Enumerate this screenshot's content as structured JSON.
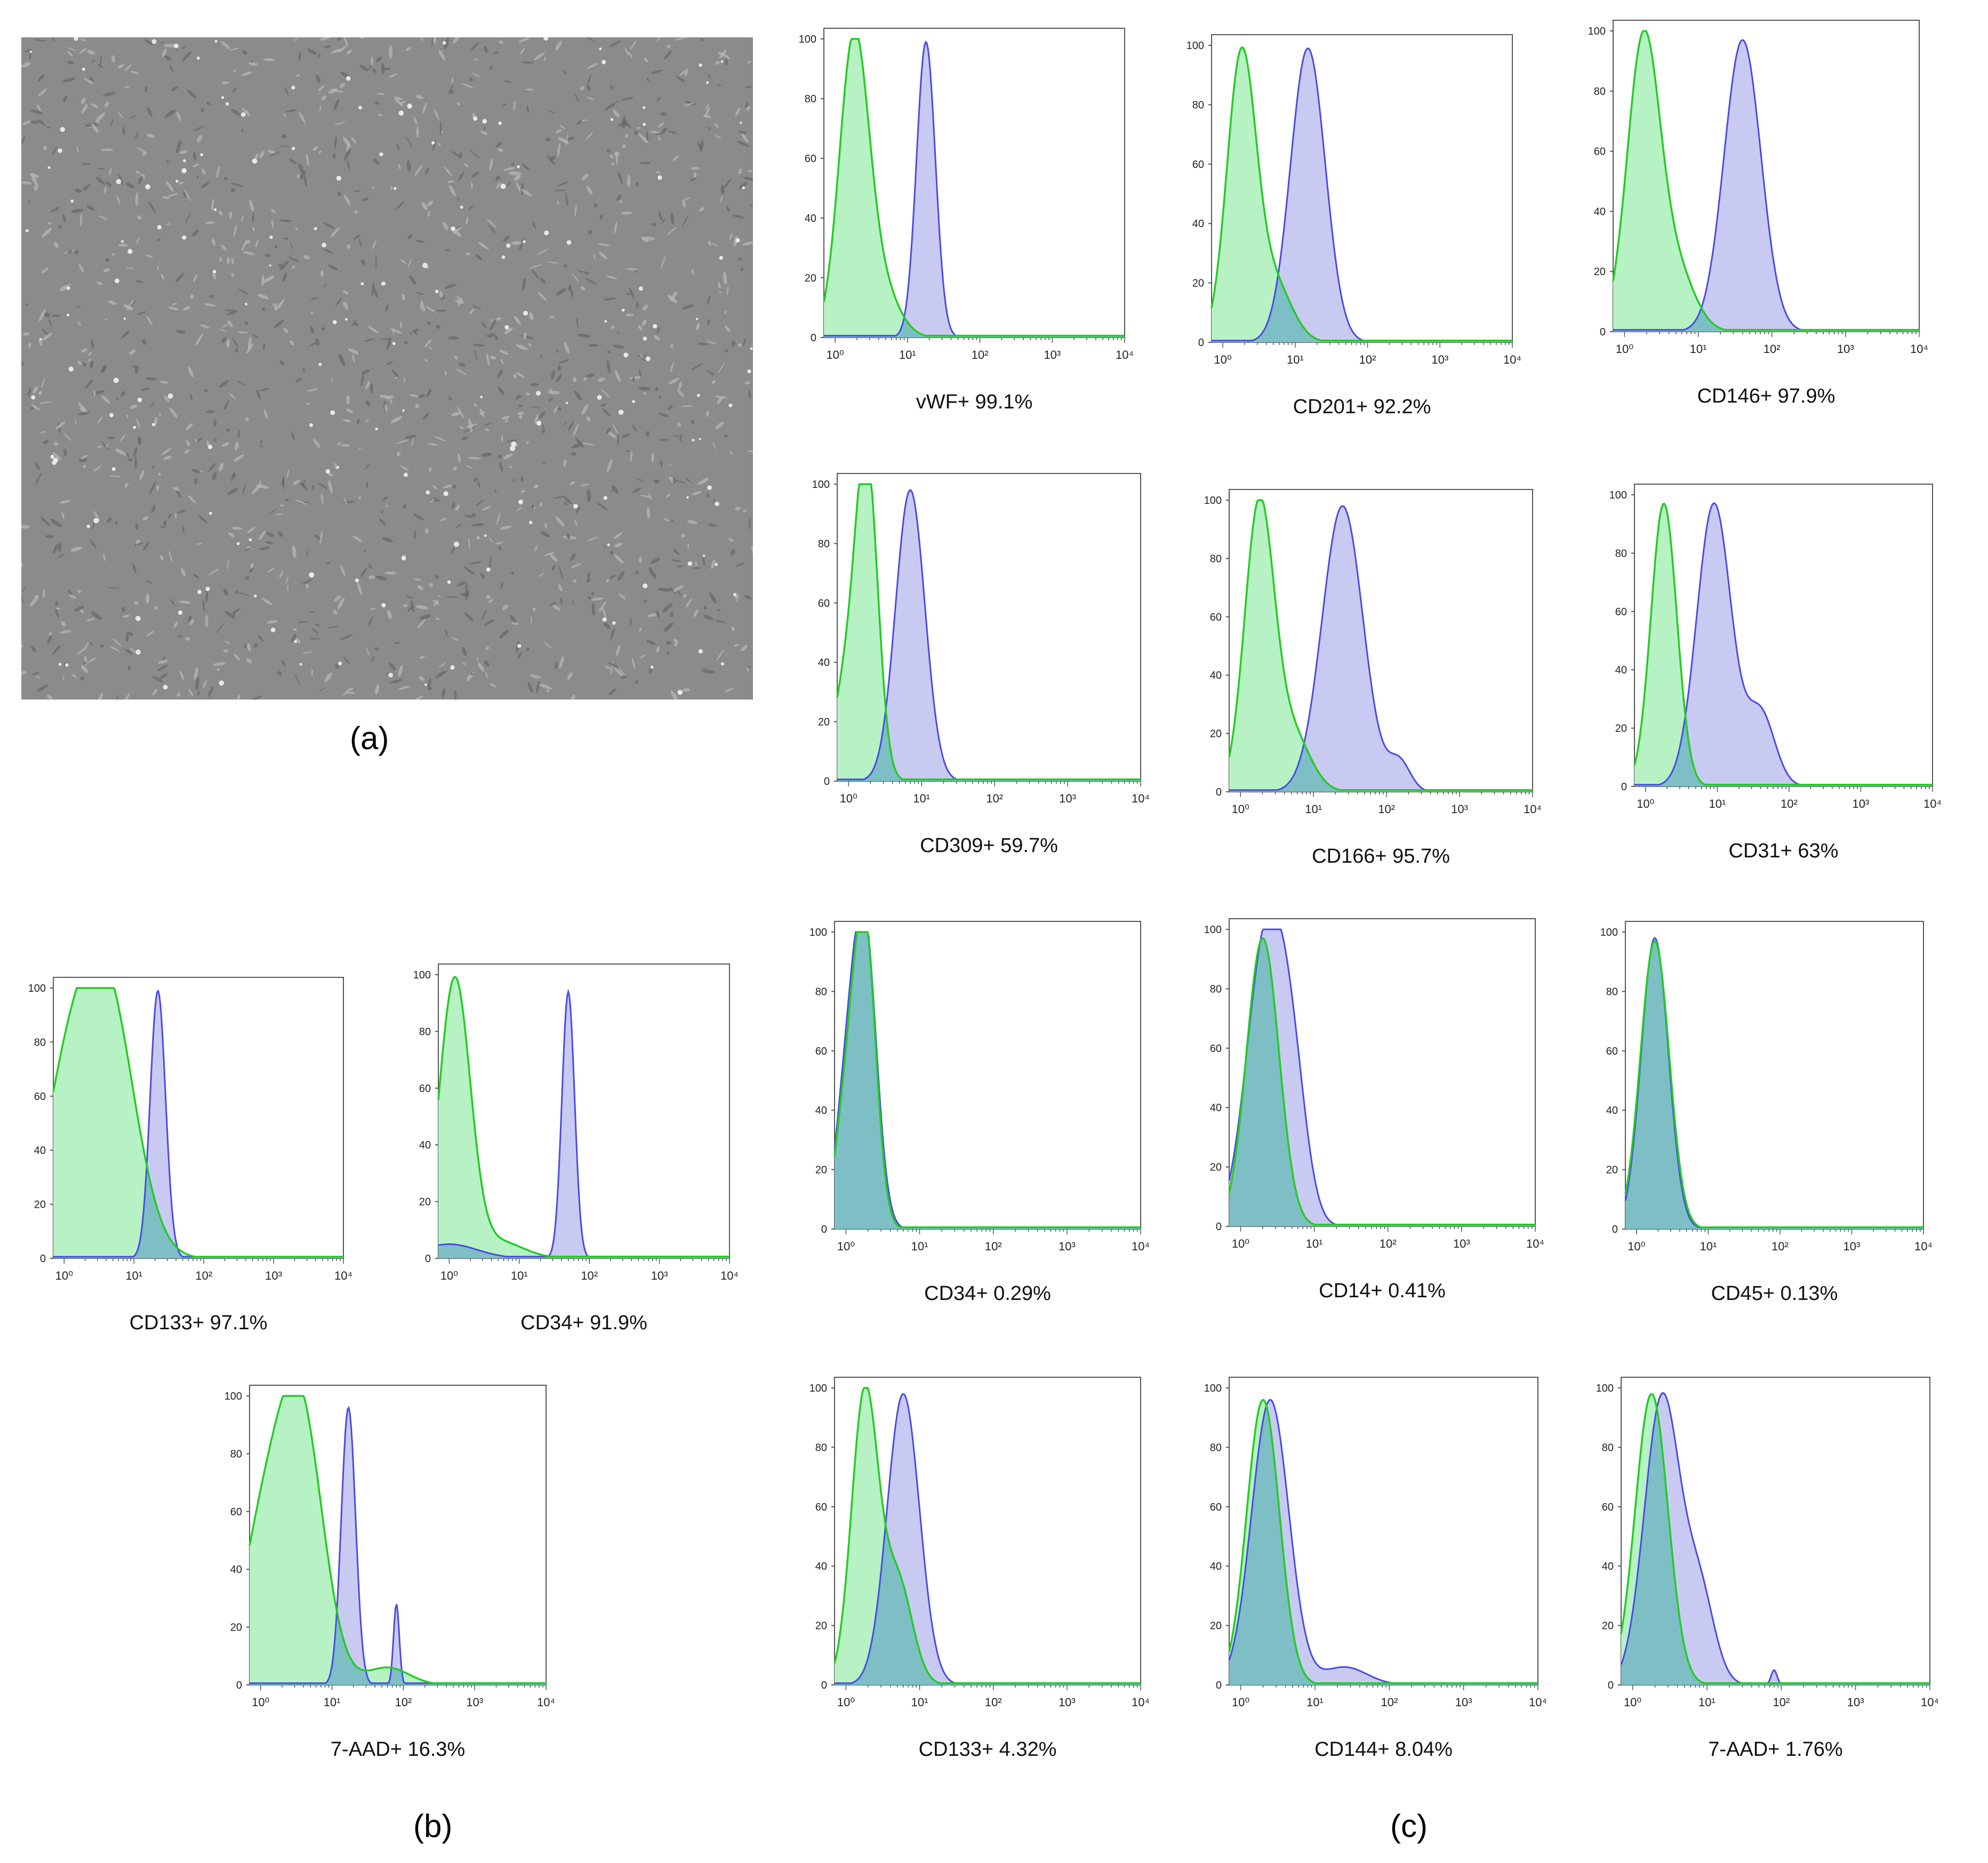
{
  "panel_labels": {
    "a": "(a)",
    "b": "(b)",
    "c": "(c)"
  },
  "colors": {
    "isotype_line": "#22cc22",
    "isotype_fill": "#b7f2c4",
    "marker_line": "#4a4ae6",
    "marker_fill": "#c9caf2",
    "overlap_fill": "#7dbfc4",
    "frame": "#555555"
  },
  "micrograph": {
    "description_icon": "phase-contrast-cell-culture-image"
  },
  "chart_data": [
    {
      "id": "b1",
      "panel": "b",
      "type": "histogram",
      "caption": "CD133+ 97.1%",
      "xscale": "log",
      "xlim": [
        0.7,
        10000
      ],
      "ylim": [
        0,
        100
      ],
      "ytick_labels": [
        "0",
        "20",
        "40",
        "60",
        "80",
        "100"
      ],
      "xtick_labels": [
        "10⁰",
        "10¹",
        "10²",
        "10³",
        "10⁴"
      ],
      "isotype": {
        "peaks": [
          {
            "c": 4,
            "h": 98,
            "w": 0.4
          },
          {
            "c": 1,
            "h": 50,
            "w": 0.35
          }
        ]
      },
      "marker": {
        "peaks": [
          {
            "c": 22,
            "h": 99,
            "w": 0.11
          }
        ]
      }
    },
    {
      "id": "b2",
      "panel": "b",
      "type": "histogram",
      "caption": "CD34+ 91.9%",
      "xscale": "log",
      "xlim": [
        0.7,
        10000
      ],
      "ylim": [
        0,
        100
      ],
      "ytick_labels": [
        "0",
        "20",
        "40",
        "60",
        "80",
        "100"
      ],
      "xtick_labels": [
        "10⁰",
        "10¹",
        "10²",
        "10³",
        "10⁴"
      ],
      "isotype": {
        "peaks": [
          {
            "c": 1.2,
            "h": 98,
            "w": 0.22
          },
          {
            "c": 5,
            "h": 6,
            "w": 0.35
          }
        ]
      },
      "marker": {
        "peaks": [
          {
            "c": 50,
            "h": 94,
            "w": 0.09
          },
          {
            "c": 1,
            "h": 5,
            "w": 0.4
          }
        ]
      }
    },
    {
      "id": "b3",
      "panel": "b",
      "type": "histogram",
      "caption": "7-AAD+ 16.3%",
      "xscale": "log",
      "xlim": [
        0.7,
        10000
      ],
      "ylim": [
        0,
        100
      ],
      "ytick_labels": [
        "0",
        "20",
        "40",
        "60",
        "80",
        "100"
      ],
      "xtick_labels": [
        "10⁰",
        "10¹",
        "10²",
        "10³",
        "10⁴"
      ],
      "isotype": {
        "peaks": [
          {
            "c": 3.5,
            "h": 96,
            "w": 0.32
          },
          {
            "c": 1,
            "h": 45,
            "w": 0.3
          },
          {
            "c": 60,
            "h": 6,
            "w": 0.3
          }
        ]
      },
      "marker": {
        "peaks": [
          {
            "c": 17,
            "h": 96,
            "w": 0.1
          },
          {
            "c": 80,
            "h": 28,
            "w": 0.04
          }
        ]
      }
    },
    {
      "id": "c1",
      "panel": "c",
      "type": "histogram",
      "caption": "vWF+ 99.1%",
      "xscale": "log",
      "xlim": [
        0.7,
        10000
      ],
      "ylim": [
        0,
        100
      ],
      "ytick_labels": [
        "0",
        "20",
        "40",
        "60",
        "80",
        "100"
      ],
      "xtick_labels": [
        "10⁰",
        "10¹",
        "10²",
        "10³",
        "10⁴"
      ],
      "isotype": {
        "peaks": [
          {
            "c": 1.8,
            "h": 96,
            "w": 0.2
          },
          {
            "c": 4,
            "h": 18,
            "w": 0.25
          }
        ]
      },
      "marker": {
        "peaks": [
          {
            "c": 18,
            "h": 99,
            "w": 0.13
          }
        ]
      }
    },
    {
      "id": "c2",
      "panel": "c",
      "type": "histogram",
      "caption": "CD201+ 92.2%",
      "xscale": "log",
      "xlim": [
        0.7,
        10000
      ],
      "ylim": [
        0,
        100
      ],
      "ytick_labels": [
        "0",
        "20",
        "40",
        "60",
        "80",
        "100"
      ],
      "xtick_labels": [
        "10⁰",
        "10¹",
        "10²",
        "10³",
        "10⁴"
      ],
      "isotype": {
        "peaks": [
          {
            "c": 1.8,
            "h": 95,
            "w": 0.2
          },
          {
            "c": 5,
            "h": 20,
            "w": 0.25
          }
        ]
      },
      "marker": {
        "peaks": [
          {
            "c": 15,
            "h": 99,
            "w": 0.24
          }
        ]
      }
    },
    {
      "id": "c3",
      "panel": "c",
      "type": "histogram",
      "caption": "CD146+ 97.9%",
      "xscale": "log",
      "xlim": [
        0.7,
        10000
      ],
      "ylim": [
        0,
        100
      ],
      "ytick_labels": [
        "0",
        "20",
        "40",
        "60",
        "80",
        "100"
      ],
      "xtick_labels": [
        "10⁰",
        "10¹",
        "10²",
        "10³",
        "10⁴"
      ],
      "isotype": {
        "peaks": [
          {
            "c": 1.8,
            "h": 96,
            "w": 0.22
          },
          {
            "c": 5,
            "h": 20,
            "w": 0.25
          }
        ]
      },
      "marker": {
        "peaks": [
          {
            "c": 40,
            "h": 97,
            "w": 0.25
          }
        ]
      }
    },
    {
      "id": "c4",
      "panel": "c",
      "type": "histogram",
      "caption": "CD309+ 59.7%",
      "xscale": "log",
      "xlim": [
        0.7,
        10000
      ],
      "ylim": [
        0,
        100
      ],
      "ytick_labels": [
        "0",
        "20",
        "40",
        "60",
        "80",
        "100"
      ],
      "xtick_labels": [
        "10⁰",
        "10¹",
        "10²",
        "10³",
        "10⁴"
      ],
      "isotype": {
        "peaks": [
          {
            "c": 1.8,
            "h": 97,
            "w": 0.15
          },
          {
            "c": 1,
            "h": 35,
            "w": 0.2
          }
        ]
      },
      "marker": {
        "peaks": [
          {
            "c": 7,
            "h": 98,
            "w": 0.2
          }
        ]
      }
    },
    {
      "id": "c5",
      "panel": "c",
      "type": "histogram",
      "caption": "CD166+ 95.7%",
      "xscale": "log",
      "xlim": [
        0.7,
        10000
      ],
      "ylim": [
        0,
        100
      ],
      "ytick_labels": [
        "0",
        "20",
        "40",
        "60",
        "80",
        "100"
      ],
      "xtick_labels": [
        "10⁰",
        "10¹",
        "10²",
        "10³",
        "10⁴"
      ],
      "isotype": {
        "peaks": [
          {
            "c": 1.8,
            "h": 97,
            "w": 0.2
          },
          {
            "c": 5,
            "h": 20,
            "w": 0.25
          }
        ]
      },
      "marker": {
        "peaks": [
          {
            "c": 25,
            "h": 98,
            "w": 0.28
          },
          {
            "c": 150,
            "h": 10,
            "w": 0.15
          }
        ]
      }
    },
    {
      "id": "c6",
      "panel": "c",
      "type": "histogram",
      "caption": "CD31+ 63%",
      "xscale": "log",
      "xlim": [
        0.7,
        10000
      ],
      "ylim": [
        0,
        100
      ],
      "ytick_labels": [
        "0",
        "20",
        "40",
        "60",
        "80",
        "100"
      ],
      "xtick_labels": [
        "10⁰",
        "10¹",
        "10²",
        "10³",
        "10⁴"
      ],
      "isotype": {
        "peaks": [
          {
            "c": 1.8,
            "h": 97,
            "w": 0.18
          }
        ]
      },
      "marker": {
        "peaks": [
          {
            "c": 9,
            "h": 97,
            "w": 0.24
          },
          {
            "c": 40,
            "h": 25,
            "w": 0.2
          }
        ]
      }
    },
    {
      "id": "c7",
      "panel": "c",
      "type": "histogram",
      "caption": "CD34+ 0.29%",
      "xscale": "log",
      "xlim": [
        0.7,
        10000
      ],
      "ylim": [
        0,
        100
      ],
      "ytick_labels": [
        "0",
        "20",
        "40",
        "60",
        "80",
        "100"
      ],
      "xtick_labels": [
        "10⁰",
        "10¹",
        "10²",
        "10³",
        "10⁴"
      ],
      "isotype": {
        "peaks": [
          {
            "c": 1.8,
            "h": 99,
            "w": 0.15
          },
          {
            "c": 1,
            "h": 38,
            "w": 0.15
          }
        ]
      },
      "marker": {
        "peaks": [
          {
            "c": 1.8,
            "h": 99,
            "w": 0.16
          },
          {
            "c": 1,
            "h": 40,
            "w": 0.15
          }
        ]
      }
    },
    {
      "id": "c8",
      "panel": "c",
      "type": "histogram",
      "caption": "CD14+ 0.41%",
      "xscale": "log",
      "xlim": [
        0.7,
        10000
      ],
      "ylim": [
        0,
        100
      ],
      "ytick_labels": [
        "0",
        "20",
        "40",
        "60",
        "80",
        "100"
      ],
      "xtick_labels": [
        "10⁰",
        "10¹",
        "10²",
        "10³",
        "10⁴"
      ],
      "isotype": {
        "peaks": [
          {
            "c": 2,
            "h": 97,
            "w": 0.22
          }
        ]
      },
      "marker": {
        "peaks": [
          {
            "c": 2.2,
            "h": 96,
            "w": 0.26
          },
          {
            "c": 5,
            "h": 40,
            "w": 0.2
          }
        ]
      }
    },
    {
      "id": "c9",
      "panel": "c",
      "type": "histogram",
      "caption": "CD45+ 0.13%",
      "xscale": "log",
      "xlim": [
        0.7,
        10000
      ],
      "ylim": [
        0,
        100
      ],
      "ytick_labels": [
        "0",
        "20",
        "40",
        "60",
        "80",
        "100"
      ],
      "xtick_labels": [
        "10⁰",
        "10¹",
        "10²",
        "10³",
        "10⁴"
      ],
      "isotype": {
        "peaks": [
          {
            "c": 1.8,
            "h": 97,
            "w": 0.2
          }
        ]
      },
      "marker": {
        "peaks": [
          {
            "c": 1.8,
            "h": 98,
            "w": 0.19
          }
        ]
      }
    },
    {
      "id": "c10",
      "panel": "c",
      "type": "histogram",
      "caption": "CD133+ 4.32%",
      "xscale": "log",
      "xlim": [
        0.7,
        10000
      ],
      "ylim": [
        0,
        100
      ],
      "ytick_labels": [
        "0",
        "20",
        "40",
        "60",
        "80",
        "100"
      ],
      "xtick_labels": [
        "10⁰",
        "10¹",
        "10²",
        "10³",
        "10⁴"
      ],
      "isotype": {
        "peaks": [
          {
            "c": 1.8,
            "h": 98,
            "w": 0.18
          },
          {
            "c": 5,
            "h": 35,
            "w": 0.2
          }
        ]
      },
      "marker": {
        "peaks": [
          {
            "c": 6,
            "h": 98,
            "w": 0.22
          }
        ]
      }
    },
    {
      "id": "c11",
      "panel": "c",
      "type": "histogram",
      "caption": "CD144+ 8.04%",
      "xscale": "log",
      "xlim": [
        0.7,
        10000
      ],
      "ylim": [
        0,
        100
      ],
      "ytick_labels": [
        "0",
        "20",
        "40",
        "60",
        "80",
        "100"
      ],
      "xtick_labels": [
        "10⁰",
        "10¹",
        "10²",
        "10³",
        "10⁴"
      ],
      "isotype": {
        "peaks": [
          {
            "c": 2,
            "h": 96,
            "w": 0.22
          }
        ]
      },
      "marker": {
        "peaks": [
          {
            "c": 2.5,
            "h": 96,
            "w": 0.25
          },
          {
            "c": 25,
            "h": 6,
            "w": 0.3
          }
        ]
      }
    },
    {
      "id": "c12",
      "panel": "c",
      "type": "histogram",
      "caption": "7-AAD+ 1.76%",
      "xscale": "log",
      "xlim": [
        0.7,
        10000
      ],
      "ylim": [
        0,
        100
      ],
      "ytick_labels": [
        "0",
        "20",
        "40",
        "60",
        "80",
        "100"
      ],
      "xtick_labels": [
        "10⁰",
        "10¹",
        "10²",
        "10³",
        "10⁴"
      ],
      "isotype": {
        "peaks": [
          {
            "c": 1.8,
            "h": 98,
            "w": 0.22
          }
        ]
      },
      "marker": {
        "peaks": [
          {
            "c": 2.5,
            "h": 97,
            "w": 0.24
          },
          {
            "c": 8,
            "h": 30,
            "w": 0.2
          },
          {
            "c": 80,
            "h": 5,
            "w": 0.04
          }
        ]
      }
    }
  ]
}
